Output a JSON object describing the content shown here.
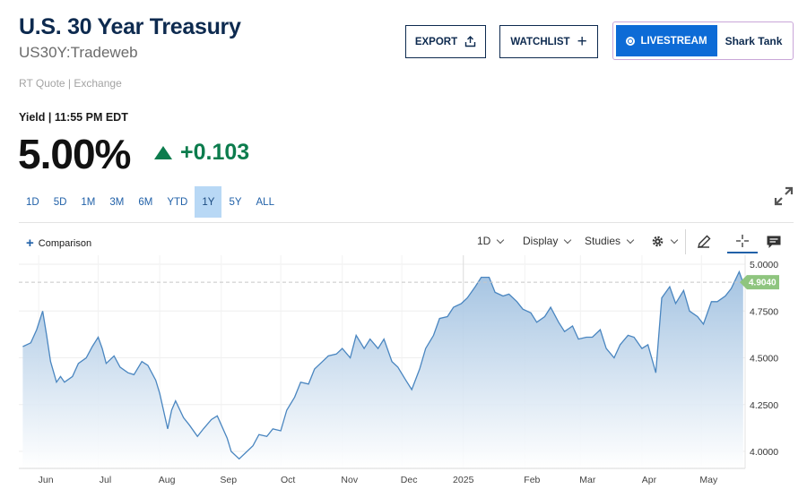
{
  "header": {
    "title": "U.S. 30 Year Treasury",
    "symbol": "US30Y:Tradeweb",
    "quote_source": "RT Quote | Exchange"
  },
  "actions": {
    "export_label": "EXPORT",
    "watchlist_label": "WATCHLIST",
    "livestream_label": "LIVESTREAM",
    "show_label": "Shark Tank"
  },
  "quote": {
    "yield_label": "Yield | 11:55 PM EDT",
    "price": "5.00%",
    "change": "+0.103",
    "change_color": "#0c7c4d"
  },
  "ranges": [
    {
      "label": "1D",
      "active": false
    },
    {
      "label": "5D",
      "active": false
    },
    {
      "label": "1M",
      "active": false
    },
    {
      "label": "3M",
      "active": false
    },
    {
      "label": "6M",
      "active": false
    },
    {
      "label": "YTD",
      "active": false
    },
    {
      "label": "1Y",
      "active": true
    },
    {
      "label": "5Y",
      "active": false
    },
    {
      "label": "ALL",
      "active": false
    }
  ],
  "toolbar": {
    "comparison_label": "Comparison",
    "interval_label": "1D",
    "display_label": "Display",
    "studies_label": "Studies"
  },
  "icons": [
    "upload-icon",
    "plus-icon",
    "live-dot-icon",
    "expand-icon",
    "gear-icon",
    "pencil-icon",
    "crosshair-icon",
    "comment-icon",
    "chevron-down-icon"
  ],
  "colors": {
    "brand_navy": "#0d2a4f",
    "accent_blue": "#0d6bd6",
    "line": "#4a86c0",
    "area_top": "#9fc0e0",
    "ref_label_bg": "#8fc57f"
  },
  "chart_data": {
    "type": "area",
    "title": "",
    "xlabel": "",
    "ylabel": "",
    "ylim": [
      3.93,
      5.02
    ],
    "yticks": [
      "5.0000",
      "4.7500",
      "4.5000",
      "4.2500",
      "4.0000"
    ],
    "xticks": [
      "Jun",
      "Jul",
      "Aug",
      "Sep",
      "Oct",
      "Nov",
      "Dec",
      "2025",
      "Feb",
      "Mar",
      "Apr",
      "May"
    ],
    "reference_line": {
      "value": 4.904,
      "label": "4.9040"
    },
    "grid": true,
    "series": [
      {
        "x": [
          "2024-05-24",
          "2024-05-28",
          "2024-05-31",
          "2024-06-03",
          "2024-06-05",
          "2024-06-07",
          "2024-06-10",
          "2024-06-12",
          "2024-06-14",
          "2024-06-18",
          "2024-06-21",
          "2024-06-25",
          "2024-06-28",
          "2024-07-01",
          "2024-07-03",
          "2024-07-05",
          "2024-07-09",
          "2024-07-12",
          "2024-07-16",
          "2024-07-19",
          "2024-07-23",
          "2024-07-26",
          "2024-07-30",
          "2024-08-01",
          "2024-08-05",
          "2024-08-07",
          "2024-08-09",
          "2024-08-13",
          "2024-08-16",
          "2024-08-20",
          "2024-08-23",
          "2024-08-27",
          "2024-08-30",
          "2024-09-04",
          "2024-09-06",
          "2024-09-10",
          "2024-09-13",
          "2024-09-17",
          "2024-09-20",
          "2024-09-24",
          "2024-09-27",
          "2024-10-01",
          "2024-10-04",
          "2024-10-08",
          "2024-10-11",
          "2024-10-15",
          "2024-10-18",
          "2024-10-22",
          "2024-10-25",
          "2024-10-29",
          "2024-11-01",
          "2024-11-05",
          "2024-11-08",
          "2024-11-12",
          "2024-11-15",
          "2024-11-19",
          "2024-11-22",
          "2024-11-26",
          "2024-11-29",
          "2024-12-03",
          "2024-12-06",
          "2024-12-10",
          "2024-12-13",
          "2024-12-17",
          "2024-12-20",
          "2024-12-24",
          "2024-12-27",
          "2024-12-31",
          "2025-01-03",
          "2025-01-07",
          "2025-01-10",
          "2025-01-14",
          "2025-01-17",
          "2025-01-21",
          "2025-01-24",
          "2025-01-28",
          "2025-01-31",
          "2025-02-04",
          "2025-02-07",
          "2025-02-11",
          "2025-02-14",
          "2025-02-18",
          "2025-02-21",
          "2025-02-25",
          "2025-02-28",
          "2025-03-04",
          "2025-03-07",
          "2025-03-11",
          "2025-03-14",
          "2025-03-18",
          "2025-03-21",
          "2025-03-25",
          "2025-03-28",
          "2025-04-01",
          "2025-04-04",
          "2025-04-08",
          "2025-04-11",
          "2025-04-15",
          "2025-04-18",
          "2025-04-22",
          "2025-04-25",
          "2025-04-29",
          "2025-05-02",
          "2025-05-06",
          "2025-05-09",
          "2025-05-13",
          "2025-05-16",
          "2025-05-20",
          "2025-05-22"
        ],
        "values": [
          4.56,
          4.58,
          4.65,
          4.75,
          4.62,
          4.48,
          4.37,
          4.4,
          4.37,
          4.4,
          4.47,
          4.5,
          4.56,
          4.61,
          4.55,
          4.47,
          4.51,
          4.45,
          4.42,
          4.41,
          4.48,
          4.46,
          4.38,
          4.31,
          4.12,
          4.22,
          4.27,
          4.18,
          4.14,
          4.08,
          4.12,
          4.17,
          4.19,
          4.07,
          4.0,
          3.96,
          3.99,
          4.03,
          4.09,
          4.08,
          4.12,
          4.11,
          4.22,
          4.29,
          4.37,
          4.36,
          4.44,
          4.48,
          4.51,
          4.52,
          4.55,
          4.5,
          4.62,
          4.55,
          4.6,
          4.55,
          4.6,
          4.48,
          4.45,
          4.38,
          4.33,
          4.44,
          4.55,
          4.62,
          4.71,
          4.72,
          4.77,
          4.79,
          4.82,
          4.88,
          4.93,
          4.93,
          4.85,
          4.83,
          4.84,
          4.8,
          4.76,
          4.74,
          4.69,
          4.72,
          4.77,
          4.69,
          4.64,
          4.67,
          4.6,
          4.61,
          4.61,
          4.65,
          4.55,
          4.5,
          4.57,
          4.62,
          4.61,
          4.55,
          4.57,
          4.42,
          4.82,
          4.88,
          4.79,
          4.86,
          4.75,
          4.72,
          4.68,
          4.8,
          4.8,
          4.83,
          4.87,
          4.96,
          4.9
        ]
      }
    ]
  }
}
